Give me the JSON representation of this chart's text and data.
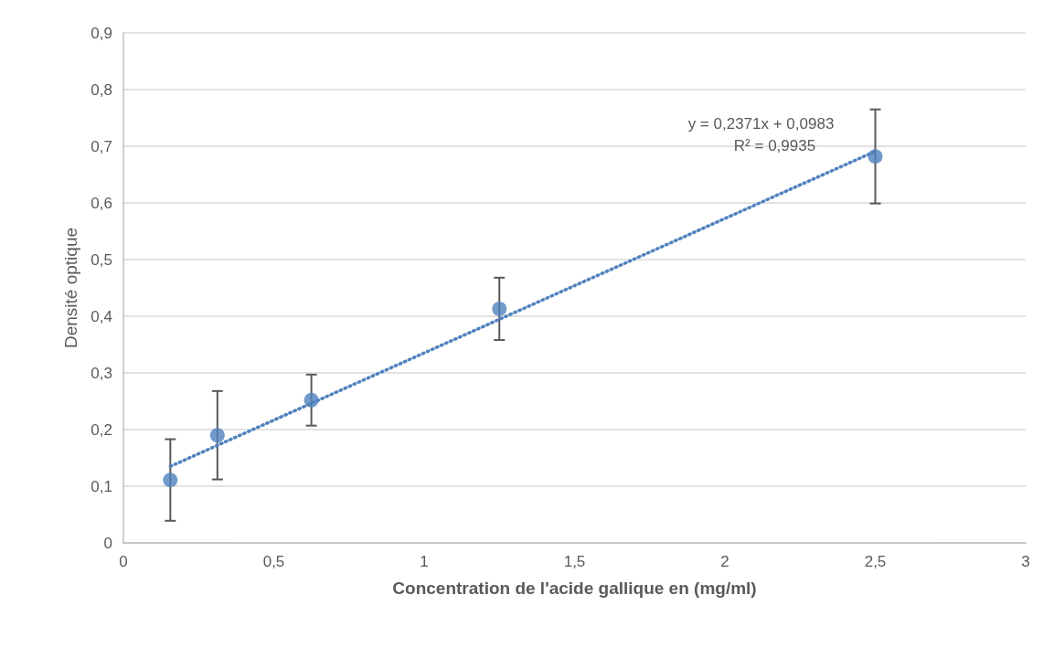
{
  "chart_data": {
    "type": "scatter",
    "xlabel": "Concentration de l'acide gallique en (mg/ml)",
    "ylabel": "Densité optique",
    "x": [
      0.156,
      0.3125,
      0.625,
      1.25,
      2.5
    ],
    "series": [
      {
        "color": "#4f81bd",
        "values": [
          0.111,
          0.19,
          0.252,
          0.413,
          0.682
        ],
        "errors": [
          0.072,
          0.078,
          0.045,
          0.055,
          0.083
        ]
      },
      {
        "type": "line",
        "color": "#4f81bd",
        "x": [
          0.156,
          2.5
        ],
        "values": [
          0.135,
          0.691
        ],
        "line_style": "dotted",
        "marker": "none"
      }
    ],
    "annotations": [
      "y = 0,2371x + 0,0983",
      "R² = 0,9935"
    ],
    "xlim": [
      0,
      3
    ],
    "xticks": [
      0,
      {
        "value": 0.5,
        "label": "0,5"
      },
      1,
      {
        "value": 1.5,
        "label": "1,5"
      },
      2,
      {
        "value": 2.5,
        "label": "2,5"
      },
      3
    ],
    "ylim": [
      0,
      0.9
    ],
    "yticks": [
      0,
      {
        "value": 0.1,
        "label": "0,1"
      },
      {
        "value": 0.2,
        "label": "0,2"
      },
      {
        "value": 0.3,
        "label": "0,3"
      },
      {
        "value": 0.4,
        "label": "0,4"
      },
      {
        "value": 0.5,
        "label": "0,5"
      },
      {
        "value": 0.6,
        "label": "0,6"
      },
      {
        "value": 0.7,
        "label": "0,7"
      },
      {
        "value": 0.8,
        "label": "0,8"
      },
      {
        "value": 0.9,
        "label": "0,9"
      }
    ],
    "grid": "y",
    "marker": "circle"
  }
}
